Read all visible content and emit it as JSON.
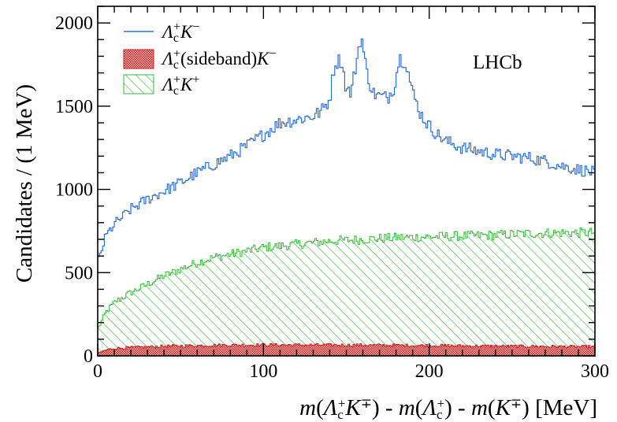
{
  "chart_data": {
    "type": "histogram",
    "title": "",
    "annotation": "LHCb",
    "xlabel": "m(Λc+K∓) - m(Λc+) - m(K∓) [MeV]",
    "ylabel": "Candidates / (1 MeV)",
    "xlim": [
      0,
      300
    ],
    "ylim": [
      0,
      2100
    ],
    "bin_width": 1,
    "x_ticks": [
      "0",
      "100",
      "200",
      "300"
    ],
    "y_ticks": [
      "0",
      "500",
      "1000",
      "1500",
      "2000"
    ],
    "grid": false,
    "legend_position": "top-left",
    "series": [
      {
        "name": "Λc+K−",
        "style": "step-line",
        "color": "#2f6fd6",
        "points": [
          [
            0,
            560
          ],
          [
            5,
            720
          ],
          [
            10,
            790
          ],
          [
            20,
            880
          ],
          [
            30,
            940
          ],
          [
            40,
            990
          ],
          [
            50,
            1040
          ],
          [
            60,
            1100
          ],
          [
            70,
            1150
          ],
          [
            80,
            1200
          ],
          [
            90,
            1260
          ],
          [
            100,
            1330
          ],
          [
            110,
            1400
          ],
          [
            120,
            1420
          ],
          [
            130,
            1440
          ],
          [
            135,
            1470
          ],
          [
            140,
            1540
          ],
          [
            143,
            1760
          ],
          [
            147,
            1780
          ],
          [
            150,
            1600
          ],
          [
            153,
            1580
          ],
          [
            157,
            1820
          ],
          [
            159,
            1930
          ],
          [
            162,
            1720
          ],
          [
            166,
            1580
          ],
          [
            170,
            1560
          ],
          [
            175,
            1550
          ],
          [
            179,
            1620
          ],
          [
            182,
            1790
          ],
          [
            186,
            1770
          ],
          [
            190,
            1580
          ],
          [
            195,
            1450
          ],
          [
            200,
            1380
          ],
          [
            205,
            1330
          ],
          [
            210,
            1290
          ],
          [
            220,
            1250
          ],
          [
            230,
            1230
          ],
          [
            240,
            1210
          ],
          [
            250,
            1200
          ],
          [
            260,
            1190
          ],
          [
            270,
            1170
          ],
          [
            280,
            1140
          ],
          [
            290,
            1120
          ],
          [
            300,
            1100
          ]
        ]
      },
      {
        "name": "Λc+(sideband)K−",
        "style": "cross-hatched",
        "color": "#cc1f1f",
        "points": [
          [
            0,
            15
          ],
          [
            5,
            35
          ],
          [
            10,
            45
          ],
          [
            20,
            50
          ],
          [
            40,
            58
          ],
          [
            60,
            62
          ],
          [
            80,
            65
          ],
          [
            100,
            66
          ],
          [
            150,
            65
          ],
          [
            200,
            62
          ],
          [
            250,
            58
          ],
          [
            300,
            55
          ]
        ]
      },
      {
        "name": "Λc+K+",
        "style": "diagonal-hatched",
        "color": "#33bb33",
        "points": [
          [
            0,
            160
          ],
          [
            5,
            260
          ],
          [
            10,
            320
          ],
          [
            20,
            380
          ],
          [
            30,
            430
          ],
          [
            40,
            480
          ],
          [
            50,
            520
          ],
          [
            60,
            560
          ],
          [
            70,
            590
          ],
          [
            80,
            610
          ],
          [
            90,
            630
          ],
          [
            100,
            650
          ],
          [
            120,
            670
          ],
          [
            140,
            690
          ],
          [
            160,
            700
          ],
          [
            180,
            710
          ],
          [
            200,
            715
          ],
          [
            220,
            720
          ],
          [
            240,
            725
          ],
          [
            260,
            735
          ],
          [
            280,
            740
          ],
          [
            300,
            740
          ]
        ]
      }
    ]
  }
}
